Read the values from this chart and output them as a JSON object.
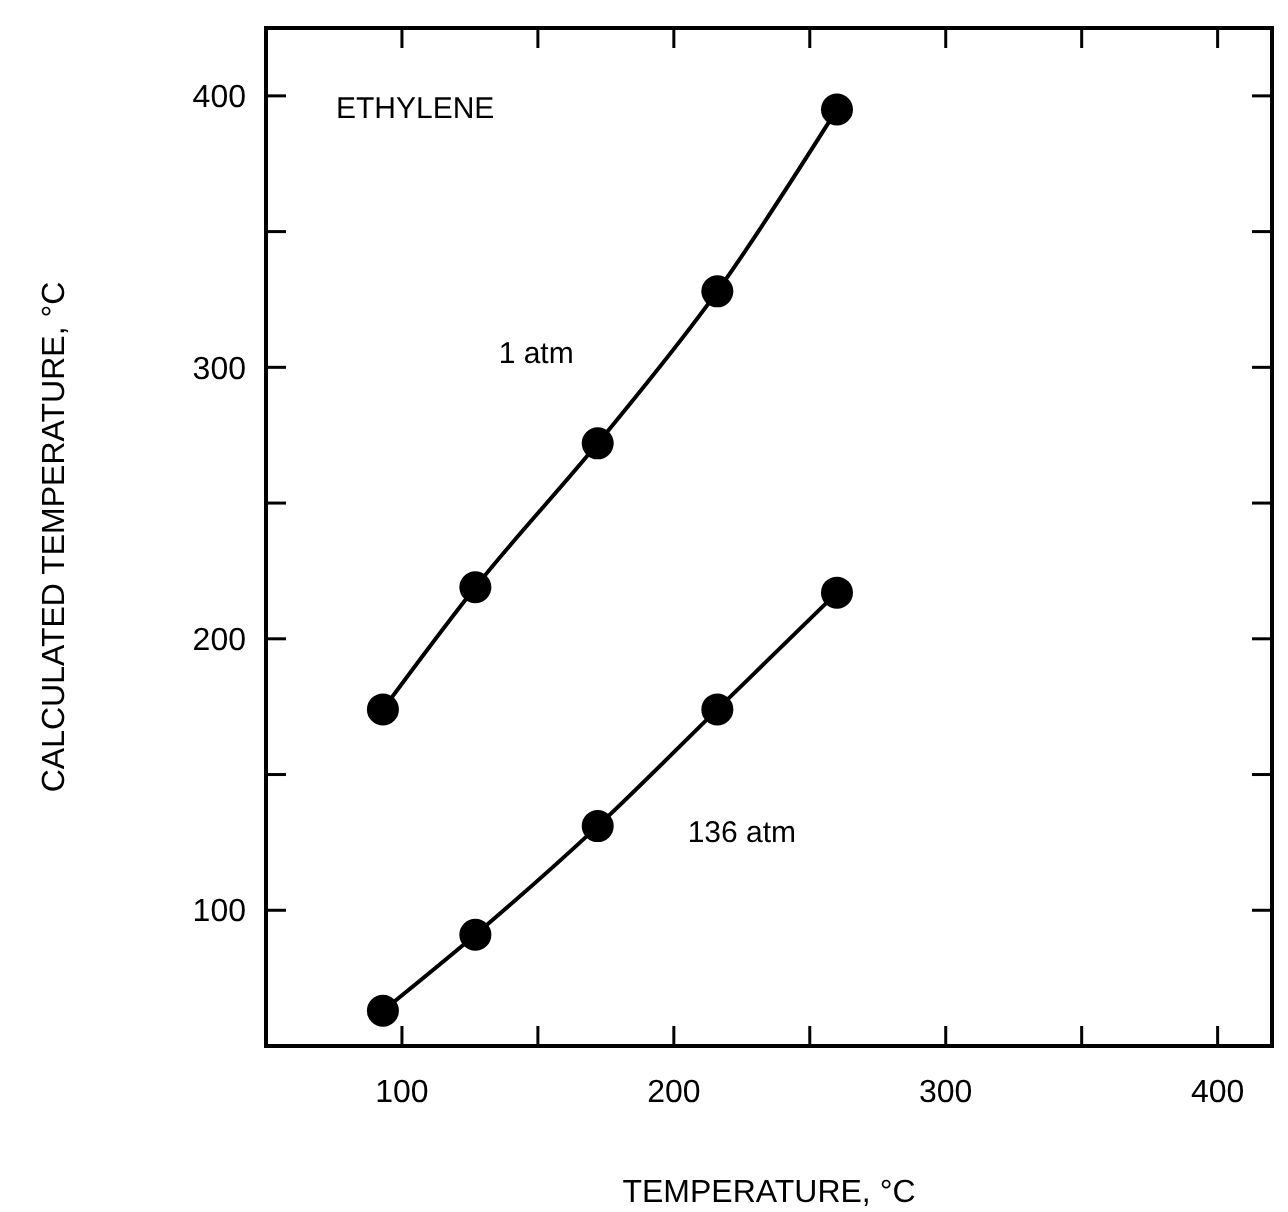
{
  "chart_data": {
    "type": "line",
    "xlabel": "TEMPERATURE, °C",
    "ylabel": "CALCULATED TEMPERATURE, °C",
    "annotations": [
      "ETHYLENE"
    ],
    "xlim": [
      50,
      420
    ],
    "ylim": [
      50,
      425
    ],
    "xticks": [
      100,
      {
        "value": 150,
        "label": null
      },
      200,
      {
        "value": 250,
        "label": null
      },
      300,
      {
        "value": 350,
        "label": null
      },
      400
    ],
    "yticks": [
      100,
      {
        "value": 150,
        "label": null
      },
      200,
      {
        "value": 250,
        "label": null
      },
      300,
      {
        "value": 350,
        "label": null
      },
      400
    ],
    "marker": "circle",
    "line_style": "solid",
    "grid": false,
    "x": [
      93,
      127,
      172,
      216,
      260
    ],
    "series": [
      {
        "name": "1 atm",
        "color": "#000000",
        "values": [
          174,
          219,
          272,
          328,
          395
        ]
      },
      {
        "name": "136 atm",
        "color": "#000000",
        "values": [
          63,
          91,
          131,
          174,
          217
        ]
      }
    ]
  }
}
